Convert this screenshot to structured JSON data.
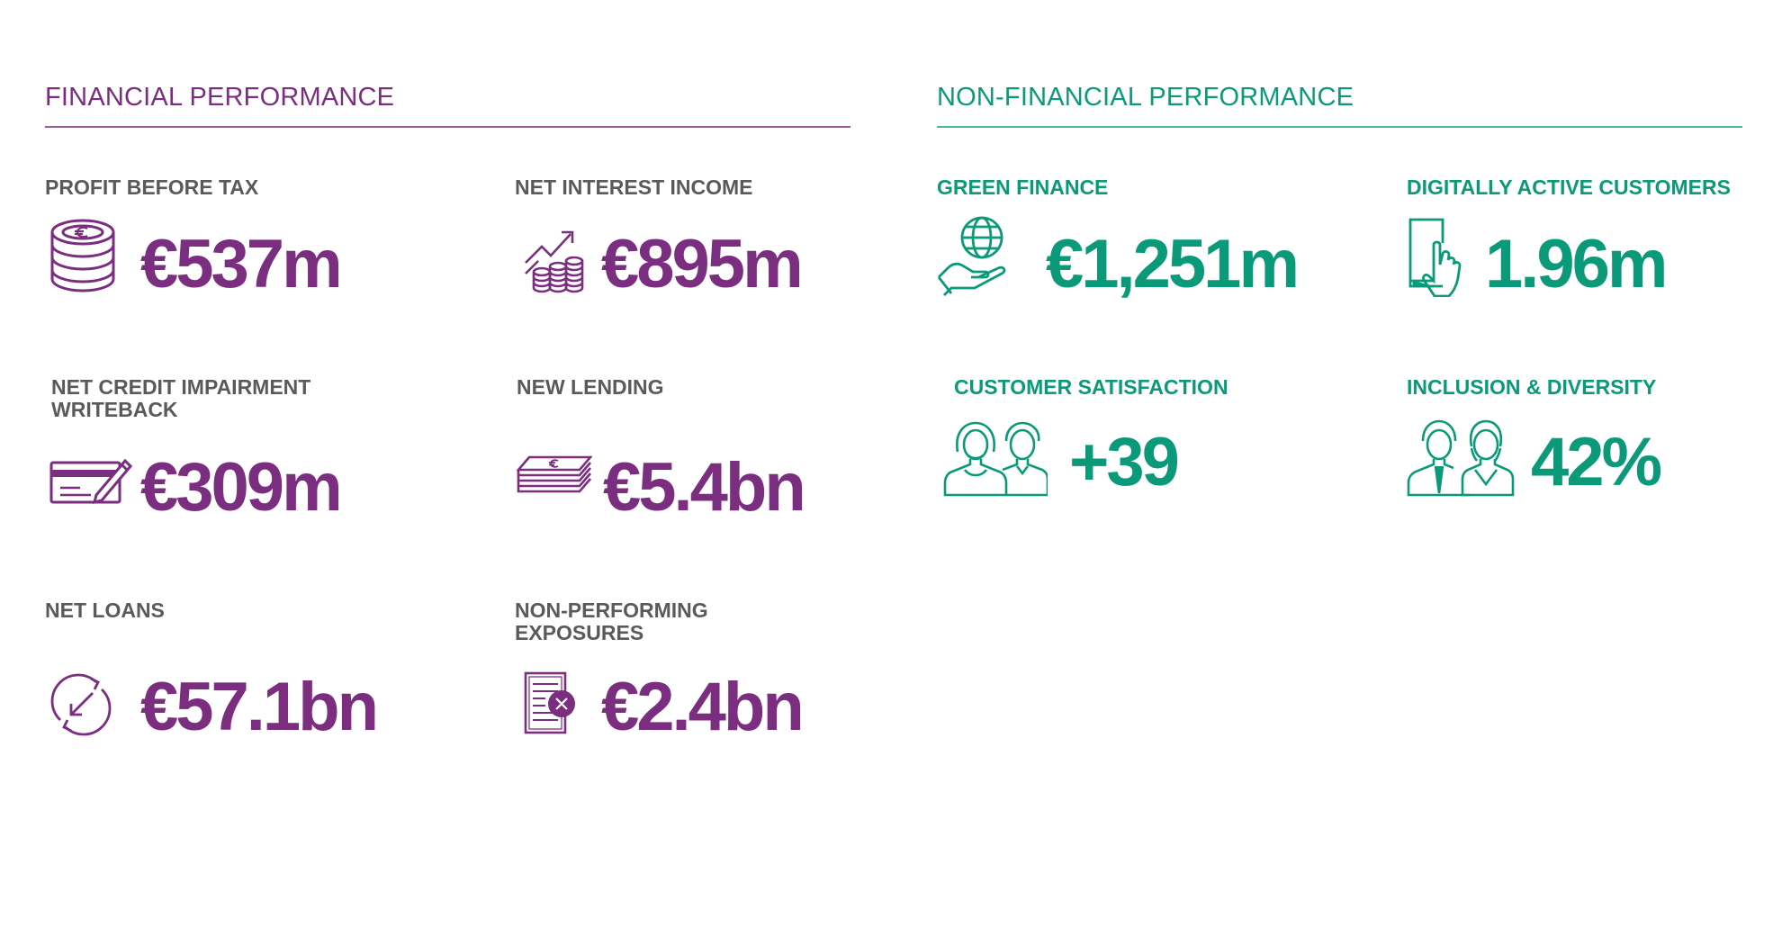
{
  "financial": {
    "title": "FINANCIAL PERFORMANCE",
    "kpis": [
      {
        "label": "PROFIT BEFORE TAX",
        "value": "€537m",
        "icon": "euro-coins-icon"
      },
      {
        "label": "NET INTEREST INCOME",
        "value": "€895m",
        "icon": "growth-coins-icon"
      },
      {
        "label": "NET CREDIT IMPAIRMENT\nWRITEBACK",
        "value": "€309m",
        "icon": "cheque-pen-icon"
      },
      {
        "label": "NEW LENDING",
        "value": "€5.4bn",
        "icon": "banknote-stack-icon"
      },
      {
        "label": "NET LOANS",
        "value": "€57.1bn",
        "icon": "circular-arrows-icon"
      },
      {
        "label": "NON-PERFORMING\nEXPOSURES",
        "value": "€2.4bn",
        "icon": "document-cross-icon"
      }
    ]
  },
  "non_financial": {
    "title": "NON-FINANCIAL PERFORMANCE",
    "kpis": [
      {
        "label": "GREEN FINANCE",
        "value": "€1,251m",
        "icon": "globe-hand-icon"
      },
      {
        "label": "DIGITALLY ACTIVE CUSTOMERS",
        "value": "1.96m",
        "icon": "tablet-touch-icon"
      },
      {
        "label": "CUSTOMER SATISFACTION",
        "value": "+39",
        "icon": "two-customers-icon"
      },
      {
        "label": "INCLUSION & DIVERSITY",
        "value": "42%",
        "icon": "diverse-people-icon"
      }
    ]
  },
  "colors": {
    "financial_accent": "#7b2d7f",
    "non_financial_accent": "#0a9a7a",
    "label_grey": "#5a5a5a"
  }
}
